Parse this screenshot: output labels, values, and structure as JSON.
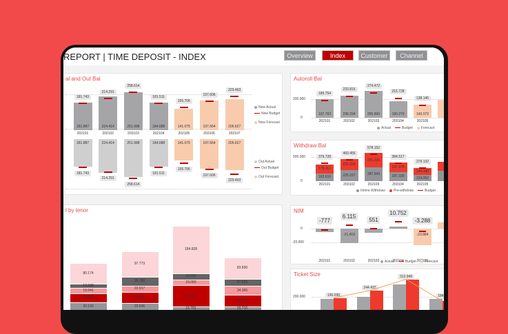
{
  "header": {
    "title": "REPORT | TIME DEPOSIT - INDEX",
    "nav": [
      "Overview",
      "Index",
      "Customer",
      "Channel"
    ],
    "active": "Index"
  },
  "colors": {
    "background": "#f24a4a",
    "accent": "#c00000",
    "actual": "#a5a5a8",
    "forecast": "#f8cbad",
    "out_actual": "#cfcfcf",
    "pre_withdraw": "#ee3a2c",
    "budget": "#c00000"
  },
  "panels": {
    "newout": {
      "title": "al and Out Bal",
      "periods": [
        "202101",
        "202102",
        "202103",
        "202104",
        "202105",
        "202106",
        "202107"
      ],
      "new_values": [
        "181.887",
        "224.414",
        "251.998",
        "184.088",
        "141.075",
        "197.664",
        "205.627"
      ],
      "new_nums": [
        181.887,
        224.414,
        251.998,
        184.088,
        141.075,
        197.664,
        205.627
      ],
      "budget_labels": [
        "181.743",
        "214.291",
        "258.614",
        "181.511",
        "155.706",
        "197.606",
        "229.493"
      ],
      "budget_nums": [
        181.743,
        214.291,
        258.614,
        181.511,
        155.706,
        197.606,
        229.493
      ],
      "forecast_from": 4,
      "legend_top": [
        "New Actual",
        "New Budget",
        "New Forecast"
      ],
      "legend_bottom": [
        "Out Actual",
        "Out Budget",
        "Out Forecast"
      ]
    },
    "autoroll": {
      "title": "Autoroll Bal",
      "periods": [
        "202101",
        "202102",
        "202103",
        "202104",
        "202105"
      ],
      "values": [
        "197.763",
        "236.234",
        "285.899",
        "180.270",
        "143.072"
      ],
      "nums": [
        197.763,
        236.234,
        285.899,
        180.27,
        143.072
      ],
      "budget_labels": [
        "189.754",
        "233.815",
        "274.472",
        "215.728",
        "138.145"
      ],
      "budget_nums": [
        189.754,
        233.815,
        274.472,
        215.728,
        138.145
      ],
      "forecast_from": 4,
      "yticks": [
        "200.000",
        "0"
      ],
      "legend": [
        "Actual",
        "Budget",
        "Forecast"
      ]
    },
    "withdraw": {
      "title": "Withdraw Bal",
      "periods": [
        "202101",
        "202102",
        "202103",
        "202104",
        "202105"
      ],
      "intime": [
        "162.616",
        "225.227",
        "287.543",
        "187.339",
        "124.952"
      ],
      "intime_nums": [
        162.616,
        225.227,
        287.543,
        187.339,
        124.952
      ],
      "pre": [
        "178.112",
        "235.229",
        "291.220",
        "197.379",
        "144.140"
      ],
      "pre_nums": [
        178.112,
        235.229,
        291.22,
        197.379,
        144.14
      ],
      "budget_labels": [
        "379.728",
        "460.456",
        "578.152",
        "384.517",
        "279.132"
      ],
      "budget_nums": [
        379.728,
        460.456,
        578.152,
        384.517,
        279.132
      ],
      "yticks": [
        "500.000",
        "0"
      ],
      "legend": [
        "Intime Withdraw",
        "Pre-withdraw",
        "Budget"
      ]
    },
    "nim": {
      "title": "NIM",
      "periods": [
        "202101",
        "202102",
        "202103",
        "202104",
        "202105"
      ],
      "budget_labels": [
        "-777",
        "6.115",
        "551",
        "10.752",
        "-3.288"
      ],
      "budget_nums": [
        -777,
        6115,
        551,
        10752,
        -3288
      ],
      "actual_nums": [
        -5000,
        -21419,
        -6000,
        3000,
        -23884
      ],
      "inner_labels": [
        "",
        "-21.419",
        "",
        "",
        "-23.884"
      ],
      "forecast_from": 4,
      "yticks": [
        "0",
        "-20.000"
      ],
      "legend": [
        "Actual",
        "Budget",
        "Forecast"
      ]
    },
    "ticket": {
      "title": "Ticket Size",
      "yticks": [
        "200.000"
      ],
      "tags": [
        "190.030",
        "244.437",
        "312.949",
        "184.7"
      ],
      "gray_nums": [
        190,
        200,
        260,
        190
      ],
      "red_nums": [
        195,
        230,
        285,
        180
      ]
    },
    "tenor": {
      "title": "l by tenor",
      "segment_colors": [
        "#939598",
        "#c00000",
        "#f4999c",
        "#646464",
        "#fcd5d8"
      ],
      "bars": [
        {
          "values": [
            "32.193",
            "34.602",
            "19.941",
            "17.038",
            "80.174"
          ],
          "nums": [
            32.193,
            34.602,
            19.941,
            17.038,
            80.174
          ]
        },
        {
          "values": [
            "29.546",
            "43.083",
            "22.917",
            "35.780",
            "97.773"
          ],
          "nums": [
            29.546,
            43.083,
            22.917,
            35.78,
            97.773
          ]
        },
        {
          "values": [
            "16.781",
            "80.894",
            "23.083",
            "23.097",
            "184.828"
          ],
          "nums": [
            16.781,
            80.894,
            23.083,
            23.097,
            184.828
          ]
        },
        {
          "values": [
            "16.710",
            "43.722",
            "34.365",
            "27.626",
            "83.890"
          ],
          "nums": [
            16.71,
            43.722,
            34.365,
            27.626,
            83.89
          ]
        }
      ]
    }
  }
}
